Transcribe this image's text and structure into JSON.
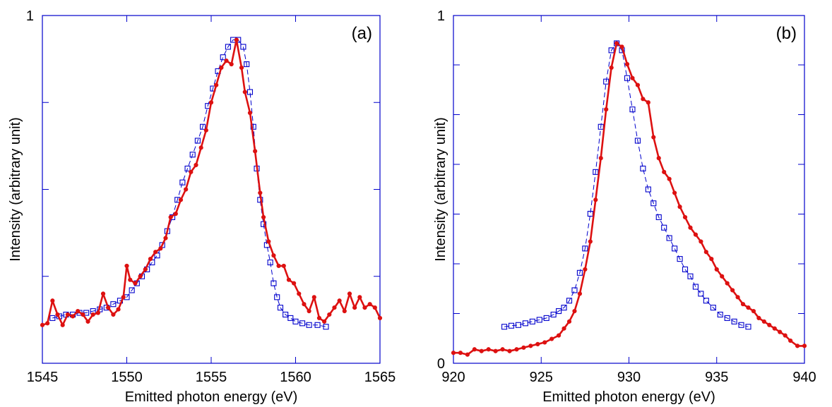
{
  "chart_data": [
    {
      "type": "line",
      "panel_label": "(a)",
      "xlabel": "Emitted photon energy (eV)",
      "ylabel": "Intensity (arbitrary unit)",
      "xlim": [
        1545,
        1565
      ],
      "ylim": [
        0,
        1
      ],
      "x_ticks": [
        "1545",
        "1550",
        "1555",
        "1560",
        "1565"
      ],
      "y_tick_labels": [
        {
          "value": 1,
          "label": "1"
        }
      ],
      "y_minor_ticks": [
        0.25,
        0.5,
        0.75
      ],
      "series": [
        {
          "color": "#dd1111",
          "marker": "filled-circle",
          "style": "solid",
          "points": [
            [
              1545.0,
              0.11
            ],
            [
              1545.3,
              0.115
            ],
            [
              1545.6,
              0.18
            ],
            [
              1545.9,
              0.14
            ],
            [
              1546.2,
              0.11
            ],
            [
              1546.5,
              0.14
            ],
            [
              1546.8,
              0.135
            ],
            [
              1547.1,
              0.15
            ],
            [
              1547.4,
              0.14
            ],
            [
              1547.7,
              0.12
            ],
            [
              1548.0,
              0.14
            ],
            [
              1548.3,
              0.145
            ],
            [
              1548.6,
              0.2
            ],
            [
              1548.9,
              0.16
            ],
            [
              1549.2,
              0.14
            ],
            [
              1549.5,
              0.155
            ],
            [
              1549.8,
              0.19
            ],
            [
              1550.0,
              0.28
            ],
            [
              1550.2,
              0.24
            ],
            [
              1550.5,
              0.23
            ],
            [
              1550.8,
              0.25
            ],
            [
              1551.1,
              0.27
            ],
            [
              1551.4,
              0.3
            ],
            [
              1551.7,
              0.32
            ],
            [
              1552.0,
              0.33
            ],
            [
              1552.3,
              0.36
            ],
            [
              1552.6,
              0.42
            ],
            [
              1552.9,
              0.43
            ],
            [
              1553.2,
              0.47
            ],
            [
              1553.5,
              0.5
            ],
            [
              1553.8,
              0.55
            ],
            [
              1554.1,
              0.57
            ],
            [
              1554.4,
              0.62
            ],
            [
              1554.7,
              0.67
            ],
            [
              1555.0,
              0.75
            ],
            [
              1555.3,
              0.8
            ],
            [
              1555.6,
              0.85
            ],
            [
              1555.9,
              0.87
            ],
            [
              1556.2,
              0.86
            ],
            [
              1556.5,
              0.93
            ],
            [
              1556.8,
              0.85
            ],
            [
              1557.0,
              0.78
            ],
            [
              1557.3,
              0.72
            ],
            [
              1557.6,
              0.61
            ],
            [
              1557.9,
              0.49
            ],
            [
              1558.1,
              0.42
            ],
            [
              1558.4,
              0.35
            ],
            [
              1558.7,
              0.31
            ],
            [
              1559.0,
              0.28
            ],
            [
              1559.3,
              0.28
            ],
            [
              1559.6,
              0.24
            ],
            [
              1559.9,
              0.23
            ],
            [
              1560.2,
              0.2
            ],
            [
              1560.5,
              0.17
            ],
            [
              1560.8,
              0.15
            ],
            [
              1561.1,
              0.19
            ],
            [
              1561.4,
              0.13
            ],
            [
              1561.7,
              0.12
            ],
            [
              1562.0,
              0.14
            ],
            [
              1562.3,
              0.16
            ],
            [
              1562.6,
              0.18
            ],
            [
              1562.9,
              0.15
            ],
            [
              1563.2,
              0.2
            ],
            [
              1563.5,
              0.16
            ],
            [
              1563.8,
              0.19
            ],
            [
              1564.1,
              0.16
            ],
            [
              1564.4,
              0.17
            ],
            [
              1564.7,
              0.16
            ],
            [
              1565.0,
              0.13
            ]
          ]
        },
        {
          "color": "#0000cc",
          "marker": "open-square",
          "style": "dashed",
          "points": [
            [
              1545.6,
              0.13
            ],
            [
              1546.0,
              0.135
            ],
            [
              1546.4,
              0.14
            ],
            [
              1546.8,
              0.14
            ],
            [
              1547.2,
              0.145
            ],
            [
              1547.6,
              0.145
            ],
            [
              1548.0,
              0.15
            ],
            [
              1548.4,
              0.155
            ],
            [
              1548.8,
              0.16
            ],
            [
              1549.2,
              0.17
            ],
            [
              1549.6,
              0.18
            ],
            [
              1550.0,
              0.19
            ],
            [
              1550.3,
              0.21
            ],
            [
              1550.6,
              0.23
            ],
            [
              1550.9,
              0.25
            ],
            [
              1551.2,
              0.27
            ],
            [
              1551.5,
              0.29
            ],
            [
              1551.8,
              0.31
            ],
            [
              1552.1,
              0.34
            ],
            [
              1552.4,
              0.38
            ],
            [
              1552.7,
              0.42
            ],
            [
              1553.0,
              0.47
            ],
            [
              1553.3,
              0.52
            ],
            [
              1553.6,
              0.56
            ],
            [
              1553.9,
              0.6
            ],
            [
              1554.2,
              0.64
            ],
            [
              1554.5,
              0.68
            ],
            [
              1554.8,
              0.74
            ],
            [
              1555.1,
              0.79
            ],
            [
              1555.4,
              0.84
            ],
            [
              1555.7,
              0.88
            ],
            [
              1556.0,
              0.91
            ],
            [
              1556.3,
              0.93
            ],
            [
              1556.6,
              0.93
            ],
            [
              1556.9,
              0.91
            ],
            [
              1557.1,
              0.86
            ],
            [
              1557.3,
              0.78
            ],
            [
              1557.5,
              0.68
            ],
            [
              1557.7,
              0.56
            ],
            [
              1557.9,
              0.47
            ],
            [
              1558.1,
              0.4
            ],
            [
              1558.3,
              0.34
            ],
            [
              1558.5,
              0.29
            ],
            [
              1558.7,
              0.23
            ],
            [
              1558.9,
              0.19
            ],
            [
              1559.1,
              0.16
            ],
            [
              1559.4,
              0.14
            ],
            [
              1559.7,
              0.13
            ],
            [
              1560.0,
              0.12
            ],
            [
              1560.4,
              0.115
            ],
            [
              1560.8,
              0.11
            ],
            [
              1561.3,
              0.11
            ],
            [
              1561.8,
              0.105
            ]
          ]
        }
      ]
    },
    {
      "type": "line",
      "panel_label": "(b)",
      "xlabel": "Emitted photon energy (eV)",
      "ylabel": "Intensity (arbitrary unit)",
      "xlim": [
        920,
        940
      ],
      "ylim": [
        0,
        1
      ],
      "x_ticks": [
        "920",
        "925",
        "930",
        "935",
        "940"
      ],
      "y_tick_labels": [
        {
          "value": 1,
          "label": "1"
        },
        {
          "value": 0,
          "label": "0"
        }
      ],
      "y_minor_ticks": [
        0.143,
        0.286,
        0.429,
        0.572,
        0.715,
        0.858
      ],
      "series": [
        {
          "color": "#dd1111",
          "marker": "filled-circle",
          "style": "solid",
          "points": [
            [
              920.0,
              0.03
            ],
            [
              920.4,
              0.03
            ],
            [
              920.8,
              0.025
            ],
            [
              921.2,
              0.04
            ],
            [
              921.6,
              0.035
            ],
            [
              922.0,
              0.04
            ],
            [
              922.4,
              0.035
            ],
            [
              922.8,
              0.04
            ],
            [
              923.2,
              0.035
            ],
            [
              923.6,
              0.04
            ],
            [
              924.0,
              0.045
            ],
            [
              924.4,
              0.05
            ],
            [
              924.8,
              0.055
            ],
            [
              925.2,
              0.06
            ],
            [
              925.6,
              0.07
            ],
            [
              926.0,
              0.08
            ],
            [
              926.3,
              0.1
            ],
            [
              926.6,
              0.12
            ],
            [
              926.9,
              0.15
            ],
            [
              927.2,
              0.2
            ],
            [
              927.5,
              0.27
            ],
            [
              927.8,
              0.35
            ],
            [
              928.1,
              0.47
            ],
            [
              928.4,
              0.59
            ],
            [
              928.7,
              0.73
            ],
            [
              929.0,
              0.85
            ],
            [
              929.3,
              0.92
            ],
            [
              929.6,
              0.91
            ],
            [
              929.9,
              0.86
            ],
            [
              930.2,
              0.82
            ],
            [
              930.5,
              0.8
            ],
            [
              930.8,
              0.76
            ],
            [
              931.1,
              0.75
            ],
            [
              931.4,
              0.65
            ],
            [
              931.7,
              0.59
            ],
            [
              932.0,
              0.55
            ],
            [
              932.3,
              0.53
            ],
            [
              932.6,
              0.49
            ],
            [
              932.9,
              0.45
            ],
            [
              933.2,
              0.42
            ],
            [
              933.5,
              0.39
            ],
            [
              933.8,
              0.37
            ],
            [
              934.1,
              0.35
            ],
            [
              934.4,
              0.32
            ],
            [
              934.7,
              0.3
            ],
            [
              935.0,
              0.27
            ],
            [
              935.3,
              0.25
            ],
            [
              935.6,
              0.23
            ],
            [
              935.9,
              0.21
            ],
            [
              936.2,
              0.19
            ],
            [
              936.5,
              0.17
            ],
            [
              936.8,
              0.16
            ],
            [
              937.1,
              0.15
            ],
            [
              937.4,
              0.13
            ],
            [
              937.7,
              0.12
            ],
            [
              938.0,
              0.11
            ],
            [
              938.3,
              0.1
            ],
            [
              938.6,
              0.09
            ],
            [
              938.9,
              0.08
            ],
            [
              939.2,
              0.065
            ],
            [
              939.6,
              0.05
            ],
            [
              940.0,
              0.05
            ]
          ]
        },
        {
          "color": "#0000cc",
          "marker": "open-square",
          "style": "dashed",
          "points": [
            [
              922.9,
              0.105
            ],
            [
              923.3,
              0.108
            ],
            [
              923.7,
              0.11
            ],
            [
              924.1,
              0.115
            ],
            [
              924.5,
              0.12
            ],
            [
              924.9,
              0.125
            ],
            [
              925.3,
              0.13
            ],
            [
              925.7,
              0.14
            ],
            [
              926.0,
              0.15
            ],
            [
              926.3,
              0.16
            ],
            [
              926.6,
              0.18
            ],
            [
              926.9,
              0.21
            ],
            [
              927.2,
              0.26
            ],
            [
              927.5,
              0.33
            ],
            [
              927.8,
              0.43
            ],
            [
              928.1,
              0.55
            ],
            [
              928.4,
              0.68
            ],
            [
              928.7,
              0.81
            ],
            [
              929.0,
              0.9
            ],
            [
              929.3,
              0.92
            ],
            [
              929.6,
              0.9
            ],
            [
              929.9,
              0.82
            ],
            [
              930.2,
              0.73
            ],
            [
              930.5,
              0.64
            ],
            [
              930.8,
              0.56
            ],
            [
              931.1,
              0.5
            ],
            [
              931.4,
              0.46
            ],
            [
              931.7,
              0.42
            ],
            [
              932.0,
              0.39
            ],
            [
              932.3,
              0.36
            ],
            [
              932.6,
              0.33
            ],
            [
              932.9,
              0.3
            ],
            [
              933.2,
              0.27
            ],
            [
              933.5,
              0.25
            ],
            [
              933.8,
              0.22
            ],
            [
              934.1,
              0.2
            ],
            [
              934.4,
              0.18
            ],
            [
              934.8,
              0.16
            ],
            [
              935.2,
              0.14
            ],
            [
              935.6,
              0.13
            ],
            [
              936.0,
              0.12
            ],
            [
              936.4,
              0.11
            ],
            [
              936.8,
              0.105
            ]
          ]
        }
      ]
    }
  ]
}
